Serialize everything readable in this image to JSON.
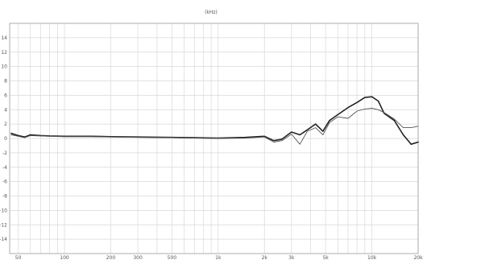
{
  "chart_data": {
    "type": "line",
    "title": "(kHz)",
    "xlabel": "",
    "ylabel": "",
    "x_scale": "log",
    "xlim": [
      44,
      20000
    ],
    "ylim": [
      -16,
      16
    ],
    "grid": true,
    "y_ticks": [
      14,
      12,
      10,
      8,
      6,
      4,
      2,
      0,
      -2,
      -4,
      -6,
      -8,
      -10,
      -12,
      -14
    ],
    "y_tick_labels": [
      "14",
      "12",
      "10",
      "8",
      "6",
      "4",
      "2",
      "0",
      "-2",
      "-4",
      "-6",
      "-8",
      "-10",
      "-12",
      "-14"
    ],
    "x_ticks": [
      50,
      100,
      200,
      300,
      500,
      1000,
      2000,
      3000,
      5000,
      10000,
      20000
    ],
    "x_tick_labels": [
      "50",
      "100",
      "200",
      "300",
      "500",
      "1k",
      "2k",
      "3k",
      "5k",
      "10k",
      "20k"
    ],
    "colors": {
      "grid": "#d8d8d8",
      "frame": "#999999",
      "series_a": "#222222",
      "series_b": "#555555"
    },
    "series": [
      {
        "x": [
          45,
          50,
          55,
          60,
          70,
          80,
          100,
          150,
          200,
          300,
          500,
          700,
          1000,
          1500,
          2000,
          2300,
          2600,
          3000,
          3400,
          3800,
          4300,
          4800,
          5300,
          6000,
          7000,
          8000,
          9000,
          10000,
          11000,
          12000,
          14000,
          16000,
          18000,
          20000
        ],
        "y": [
          0.7,
          0.4,
          0.2,
          0.5,
          0.4,
          0.35,
          0.3,
          0.3,
          0.25,
          0.2,
          0.15,
          0.1,
          0.05,
          0.15,
          0.3,
          -0.3,
          -0.1,
          0.9,
          0.5,
          1.2,
          2.0,
          1.0,
          2.5,
          3.3,
          4.3,
          5.0,
          5.7,
          5.8,
          5.2,
          3.5,
          2.5,
          0.5,
          -0.8,
          -0.5
        ]
      },
      {
        "x": [
          45,
          50,
          55,
          60,
          70,
          80,
          100,
          150,
          200,
          300,
          500,
          700,
          1000,
          1500,
          2000,
          2300,
          2600,
          3000,
          3400,
          3800,
          4300,
          4800,
          5300,
          6000,
          7000,
          8000,
          9000,
          10000,
          11000,
          12000,
          14000,
          16000,
          18000,
          20000
        ],
        "y": [
          0.5,
          0.3,
          0.1,
          0.4,
          0.35,
          0.3,
          0.25,
          0.25,
          0.2,
          0.15,
          0.1,
          0.05,
          0.0,
          0.05,
          0.2,
          -0.5,
          -0.3,
          0.6,
          -0.8,
          1.0,
          1.5,
          0.5,
          2.2,
          3.0,
          2.8,
          3.8,
          4.1,
          4.2,
          4.0,
          3.6,
          2.7,
          1.5,
          1.5,
          1.7
        ]
      }
    ]
  }
}
